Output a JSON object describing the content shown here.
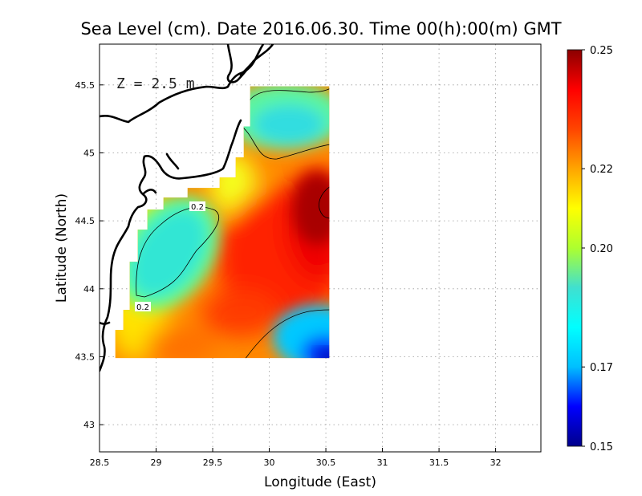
{
  "title": "Sea Level (cm). Date 2016.06.30. Time 00(h):00(m) GMT",
  "depth_label": "Z = 2.5 m",
  "chart_data": {
    "type": "heatmap",
    "title": "Sea Level (cm). Date 2016.06.30. Time 00(h):00(m) GMT",
    "xlabel": "Longitude (East)",
    "ylabel": "Latitude (North)",
    "xlim": [
      28.5,
      32.4
    ],
    "ylim": [
      42.8,
      45.8
    ],
    "x_ticks": [
      28.5,
      29,
      29.5,
      30,
      30.5,
      31,
      31.5,
      32
    ],
    "x_tick_labels": [
      "28.5",
      "29",
      "29.5",
      "30",
      "30.5",
      "31",
      "31.5",
      "32"
    ],
    "y_ticks": [
      43,
      43.5,
      44,
      44.5,
      45,
      45.5
    ],
    "y_tick_labels": [
      "43",
      "43.5",
      "44",
      "44.5",
      "45",
      "45.5"
    ],
    "grid": true,
    "colorbar": {
      "min": 0.15,
      "max": 0.25,
      "ticks": [
        0.15,
        0.17,
        0.2,
        0.22,
        0.25
      ],
      "tick_labels": [
        "0.15",
        "0.17",
        "0.20",
        "0.22",
        "0.25"
      ],
      "colors": [
        "#00008b",
        "#0000ff",
        "#00bfff",
        "#00ffff",
        "#40e0d0",
        "#adff2f",
        "#ffff00",
        "#ffa500",
        "#ff4500",
        "#ff0000",
        "#8b0000"
      ]
    },
    "domain": {
      "lon_range": [
        28.64,
        30.53
      ],
      "lat_range": [
        43.49,
        45.49
      ]
    },
    "field_features": [
      {
        "kind": "high",
        "lon": 30.45,
        "lat": 44.55,
        "value": 0.25
      },
      {
        "kind": "high",
        "lon": 30.15,
        "lat": 44.1,
        "value": 0.235
      },
      {
        "kind": "low",
        "lon": 29.2,
        "lat": 44.2,
        "value": 0.19
      },
      {
        "kind": "low",
        "lon": 30.15,
        "lat": 45.18,
        "value": 0.185
      },
      {
        "kind": "low",
        "lon": 30.5,
        "lat": 43.52,
        "value": 0.15
      },
      {
        "kind": "high",
        "lon": 29.25,
        "lat": 43.55,
        "value": 0.225
      }
    ],
    "contour_labels": [
      {
        "lon": 29.33,
        "lat": 44.61,
        "text": "0.2"
      },
      {
        "lon": 28.88,
        "lat": 43.88,
        "text": "0.2"
      }
    ]
  }
}
